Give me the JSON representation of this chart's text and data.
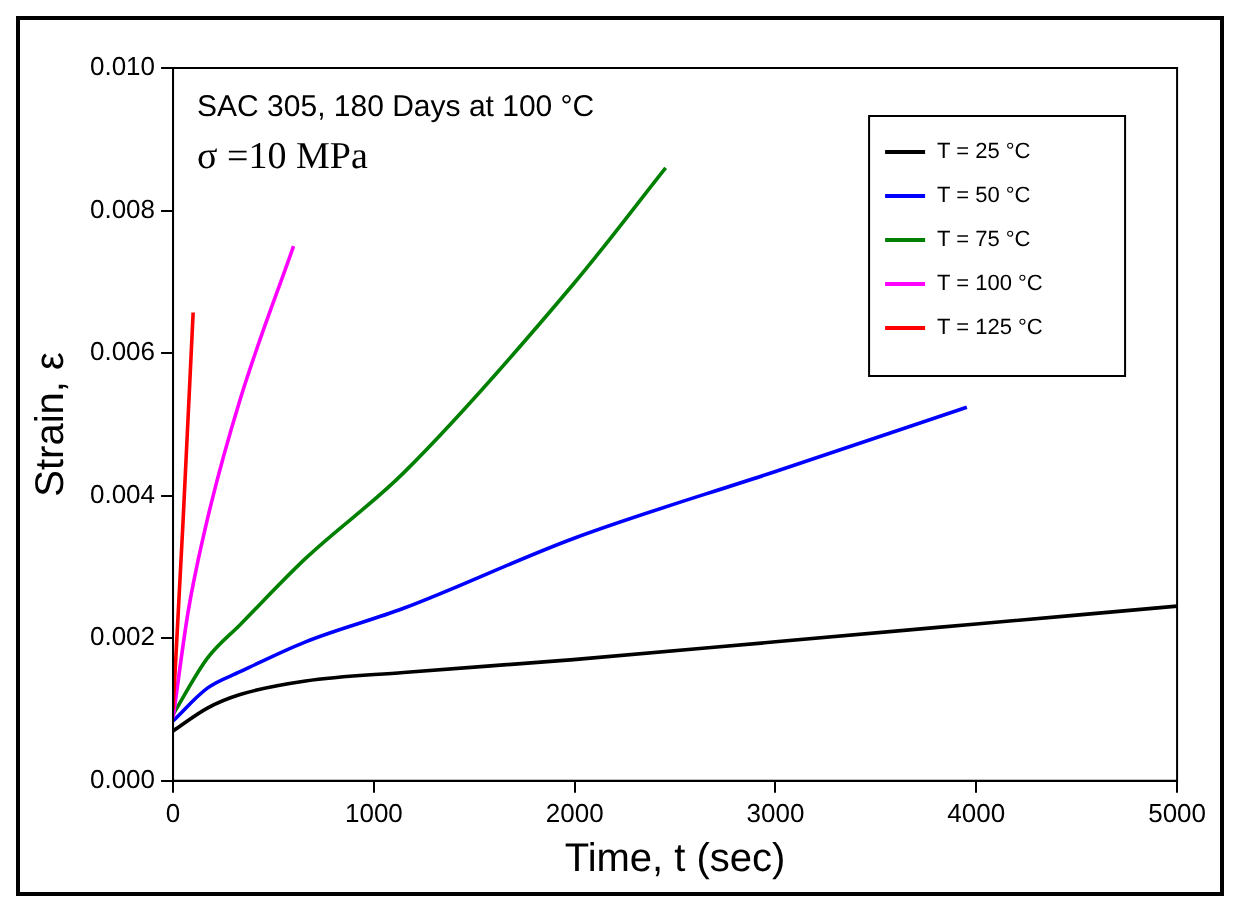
{
  "chart_data": {
    "type": "line",
    "xlabel": "Time, t (sec)",
    "ylabel": "Strain, ε",
    "annotations": [
      "SAC 305, 180 Days at 100 °C",
      "σ =10 MPa"
    ],
    "xlim": [
      0,
      5000
    ],
    "xticks": [
      0,
      1000,
      2000,
      3000,
      4000,
      5000
    ],
    "ylim": [
      0,
      0.01
    ],
    "yticks": [
      {
        "value": 0,
        "label": "0.000"
      },
      {
        "value": 0.002,
        "label": "0.002"
      },
      {
        "value": 0.004,
        "label": "0.004"
      },
      {
        "value": 0.006,
        "label": "0.006"
      },
      {
        "value": 0.008,
        "label": "0.008"
      },
      {
        "value": 0.01,
        "label": "0.010"
      }
    ],
    "grid": false,
    "legend": "top right",
    "marker": "none",
    "line_style": "solid",
    "series": [
      {
        "name": "T = 25 °C",
        "color": "#000000",
        "x": [
          0,
          171,
          334,
          660,
          1148,
          1994,
          3000,
          4000,
          5000
        ],
        "values": [
          0.0007,
          0.00102,
          0.00121,
          0.0014,
          0.00152,
          0.0017,
          0.00195,
          0.0022,
          0.00245
        ]
      },
      {
        "name": "T = 50 °C",
        "color": "#0000ff",
        "x": [
          0,
          171,
          334,
          660,
          1148,
          1994,
          3000,
          3953
        ],
        "values": [
          0.00084,
          0.0013,
          0.00153,
          0.00195,
          0.00242,
          0.0034,
          0.00434,
          0.00524
        ]
      },
      {
        "name": "T = 75 °C",
        "color": "#008000",
        "x": [
          0,
          171,
          334,
          660,
          1148,
          1994,
          2453
        ],
        "values": [
          0.00093,
          0.00172,
          0.00219,
          0.00312,
          0.00432,
          0.00697,
          0.0086
        ]
      },
      {
        "name": "T = 100 °C",
        "color": "#ff00ff",
        "x": [
          0,
          75,
          171,
          334,
          600
        ],
        "values": [
          0.00088,
          0.00237,
          0.00367,
          0.00535,
          0.0075
        ]
      },
      {
        "name": "T = 125 °C",
        "color": "#ff0000",
        "x": [
          0,
          49,
          100
        ],
        "values": [
          0.001,
          0.0036,
          0.00657
        ]
      }
    ]
  }
}
